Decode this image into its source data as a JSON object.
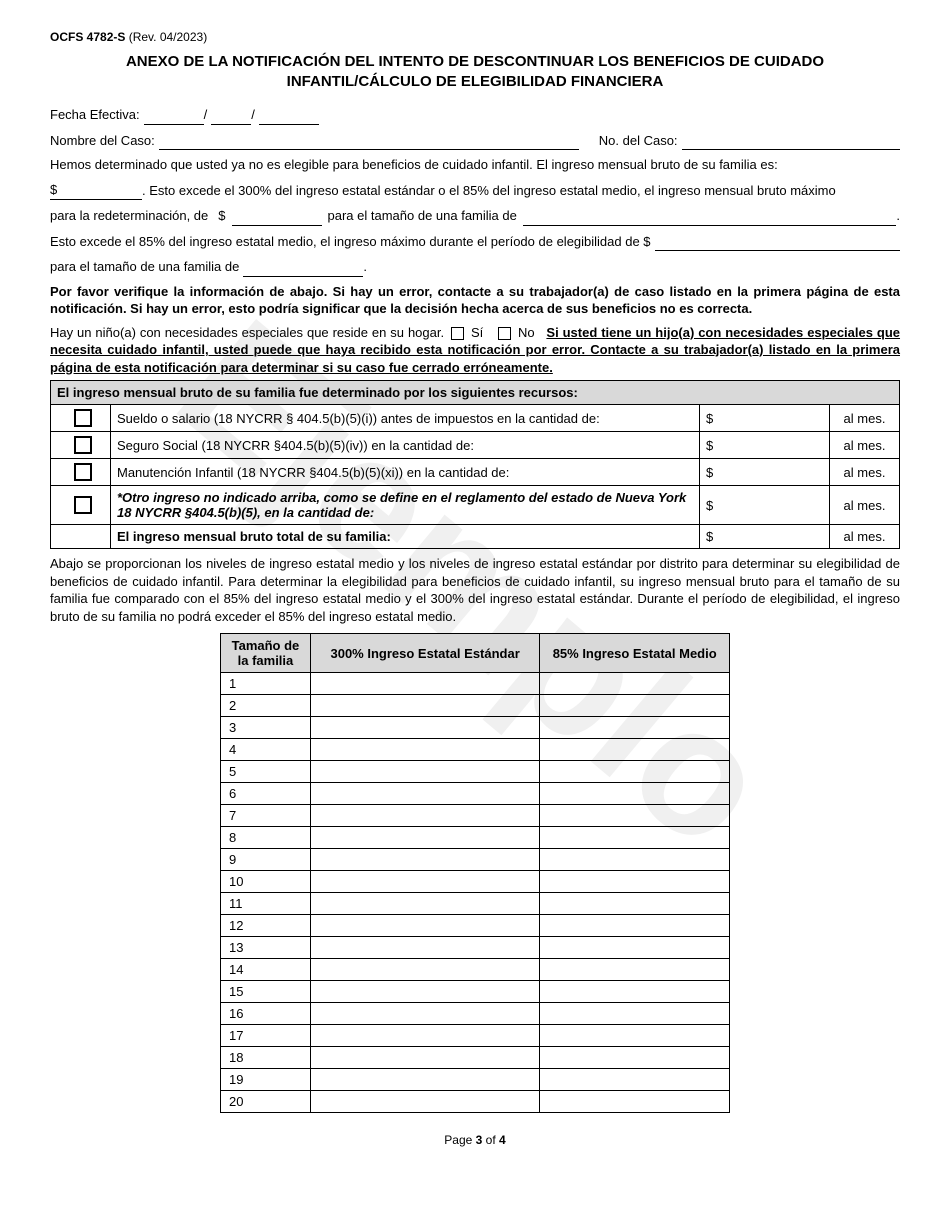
{
  "watermark": "Ejemplo",
  "form_id_bold": "OCFS 4782-S",
  "form_id_rev": " (Rev. 04/2023)",
  "title_line1": "ANEXO DE LA NOTIFICACIÓN DEL INTENTO DE DESCONTINUAR LOS BENEFICIOS DE CUIDADO",
  "title_line2": "INFANTIL/CÁLCULO DE ELEGIBILIDAD FINANCIERA",
  "labels": {
    "fecha_efectiva": "Fecha Efectiva:",
    "slash": "/",
    "nombre_caso": "Nombre del Caso:",
    "no_caso": "No. del Caso:",
    "intro_line": "Hemos determinado que usted ya no es elegible para beneficios de cuidado infantil. El ingreso mensual bruto de su familia es:",
    "dollar": "$",
    "exceeds_text": ". Esto excede el 300% del ingreso estatal estándar o el 85% del ingreso estatal medio, el ingreso mensual bruto máximo",
    "para_redeterm": "para la redeterminación, de",
    "para_tamano": "para el tamaño de una familia de",
    "period": ".",
    "exceeds_85": "Esto excede el 85% del ingreso estatal medio, el ingreso máximo durante el período de elegibilidad de  $",
    "para_tamano2": "para el tamaño de una familia de",
    "verify_bold": "Por favor verifique la información de abajo. Si hay un error, contacte a su trabajador(a) de caso listado en la primera página de esta notificación. Si hay un error, esto podría significar que la decisión hecha acerca de sus beneficios no es correcta.",
    "special_needs_pre": "Hay un niño(a) con necesidades especiales que reside en su hogar.",
    "si": "Sí",
    "no": "No",
    "special_needs_bold": "Si usted tiene un hijo(a) con necesidades especiales que necesita cuidado infantil, usted puede que haya recibido esta notificación por error. Contacte a su trabajador(a) listado en la primera página de esta notificación para determinar si su caso fue cerrado erróneamente."
  },
  "income_table": {
    "header": "El ingreso mensual bruto de su familia fue determinado por los siguientes recursos:",
    "rows": [
      {
        "desc": "Sueldo o salario (18 NYCRR § 404.5(b)(5)(i)) antes de impuestos en la cantidad de:",
        "bold": false,
        "italic": false
      },
      {
        "desc": "Seguro Social (18 NYCRR §404.5(b)(5)(iv)) en la cantidad de:",
        "bold": false,
        "italic": false
      },
      {
        "desc": "Manutención Infantil (18 NYCRR §404.5(b)(5)(xi)) en la cantidad de:",
        "bold": false,
        "italic": false
      },
      {
        "desc": "*Otro ingreso no indicado arriba, como se define en el reglamento del estado de Nueva York 18 NYCRR §404.5(b)(5), en la cantidad de:",
        "bold": true,
        "italic": true
      }
    ],
    "total_row": "El ingreso mensual bruto total de su familia:",
    "unit": "al mes.",
    "dollar": "$"
  },
  "below_para": "Abajo se proporcionan los niveles de ingreso estatal medio y los niveles de ingreso estatal estándar por distrito para determinar su elegibilidad de beneficios de cuidado infantil. Para determinar la elegibilidad para beneficios de cuidado infantil, su ingreso mensual bruto para el tamaño de su familia fue comparado con el 85% del ingreso estatal medio y el 300% del ingreso estatal estándar. Durante el período de elegibilidad, el ingreso bruto de su familia no podrá exceder el 85% del ingreso estatal medio.",
  "size_table": {
    "col1": "Tamaño de la familia",
    "col2": "300% Ingreso Estatal Estándar",
    "col3": "85% Ingreso Estatal Medio",
    "sizes": [
      "1",
      "2",
      "3",
      "4",
      "5",
      "6",
      "7",
      "8",
      "9",
      "10",
      "11",
      "12",
      "13",
      "14",
      "15",
      "16",
      "17",
      "18",
      "19",
      "20"
    ]
  },
  "footer": {
    "page_pre": "Page ",
    "page_num": "3",
    "page_of": " of ",
    "page_total": "4"
  }
}
